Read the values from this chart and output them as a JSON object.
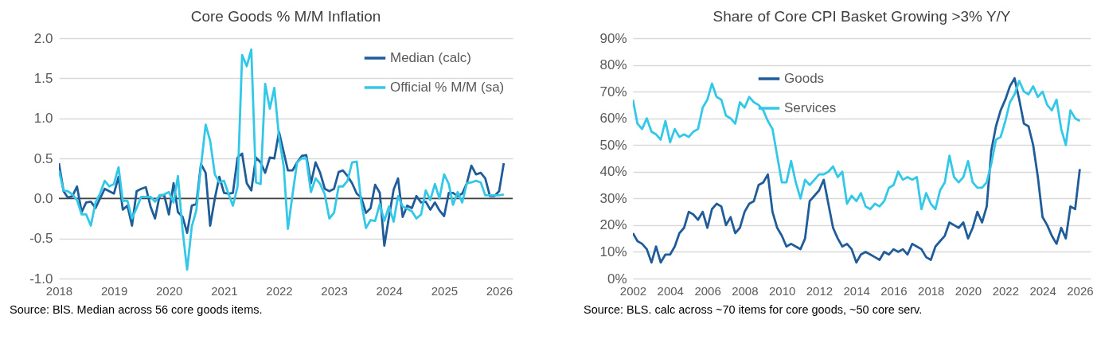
{
  "chart_data": [
    {
      "type": "line",
      "title": "Core Goods % M/M Inflation",
      "xlim": [
        "2018-01",
        "2026-04"
      ],
      "xticks": [
        "2018",
        "2019",
        "2020",
        "2021",
        "2022",
        "2023",
        "2024",
        "2025",
        "2026"
      ],
      "ylim": [
        -1,
        2
      ],
      "yticks": [
        {
          "value": -1,
          "label": "-1.0"
        },
        -0.5,
        {
          "value": 0,
          "label": "0.0"
        },
        0.5,
        {
          "value": 1,
          "label": "1.0"
        },
        1.5,
        {
          "value": 2,
          "label": "2.0"
        }
      ],
      "grid": "y",
      "legend": "top right",
      "ref_lines": [
        {
          "axis": "y",
          "value": 0,
          "color": "#404040"
        }
      ],
      "annotations": [
        "Source: BlS. Median across 56 core goods items."
      ],
      "x": [
        "2018-01",
        "2018-02",
        "2018-03",
        "2018-04",
        "2018-05",
        "2018-06",
        "2018-07",
        "2018-08",
        "2018-09",
        "2018-10",
        "2018-11",
        "2018-12",
        "2019-01",
        "2019-02",
        "2019-03",
        "2019-04",
        "2019-05",
        "2019-06",
        "2019-07",
        "2019-08",
        "2019-09",
        "2019-10",
        "2019-11",
        "2019-12",
        "2020-01",
        "2020-02",
        "2020-03",
        "2020-04",
        "2020-05",
        "2020-06",
        "2020-07",
        "2020-08",
        "2020-09",
        "2020-10",
        "2020-11",
        "2020-12",
        "2021-01",
        "2021-02",
        "2021-03",
        "2021-04",
        "2021-05",
        "2021-06",
        "2021-07",
        "2021-08",
        "2021-09",
        "2021-10",
        "2021-11",
        "2021-12",
        "2022-01",
        "2022-02",
        "2022-03",
        "2022-04",
        "2022-05",
        "2022-06",
        "2022-07",
        "2022-08",
        "2022-09",
        "2022-10",
        "2022-11",
        "2022-12",
        "2023-01",
        "2023-02",
        "2023-03",
        "2023-04",
        "2023-05",
        "2023-06",
        "2023-07",
        "2023-08",
        "2023-09",
        "2023-10",
        "2023-11",
        "2023-12",
        "2024-01",
        "2024-02",
        "2024-03",
        "2024-04",
        "2024-05",
        "2024-06",
        "2024-07",
        "2024-08",
        "2024-09",
        "2024-10",
        "2024-11",
        "2024-12",
        "2025-01",
        "2025-02",
        "2025-03",
        "2025-04",
        "2025-05",
        "2025-06",
        "2025-07",
        "2025-08",
        "2025-09",
        "2025-10",
        "2025-11",
        "2025-12",
        "2026-01",
        "2026-02"
      ],
      "series": [
        {
          "name": "Median (calc)",
          "color": "#1f5c99",
          "values": [
            0.44,
            0.09,
            0.01,
            0.03,
            0.15,
            -0.17,
            -0.05,
            -0.04,
            -0.12,
            0.0,
            0.12,
            0.09,
            0.06,
            0.27,
            -0.14,
            -0.09,
            -0.34,
            0.09,
            0.12,
            0.14,
            -0.1,
            -0.25,
            0.04,
            0.04,
            -0.2,
            0.19,
            -0.17,
            -0.23,
            -0.43,
            -0.09,
            -0.07,
            0.43,
            0.32,
            -0.34,
            0.0,
            0.27,
            0.07,
            0.06,
            0.07,
            0.51,
            0.56,
            0.19,
            0.1,
            0.51,
            0.45,
            0.32,
            0.51,
            0.5,
            0.83,
            0.58,
            0.35,
            0.35,
            0.45,
            0.53,
            0.54,
            0.19,
            0.45,
            0.32,
            0.12,
            0.09,
            0.12,
            0.33,
            0.35,
            0.28,
            0.19,
            0.06,
            0.01,
            -0.18,
            -0.12,
            0.17,
            0.07,
            -0.59,
            -0.23,
            0.11,
            0.25,
            -0.23,
            -0.09,
            -0.12,
            0.03,
            -0.05,
            -0.04,
            -0.14,
            -0.05,
            -0.15,
            -0.22,
            0.07,
            0.07,
            0.03,
            0.06,
            0.19,
            0.41,
            0.3,
            0.32,
            0.25,
            0.03,
            0.03,
            0.09,
            0.44
          ]
        },
        {
          "name": "Official % M/M (sa)",
          "color": "#33c7e8",
          "values": [
            0.35,
            0.1,
            0.09,
            0.05,
            -0.02,
            -0.2,
            -0.2,
            -0.34,
            -0.05,
            0.06,
            0.22,
            0.15,
            0.18,
            0.39,
            -0.03,
            -0.03,
            -0.25,
            -0.12,
            0.02,
            0.02,
            0.02,
            -0.04,
            0.04,
            0.05,
            0.08,
            -0.05,
            0.28,
            -0.4,
            -0.89,
            -0.35,
            -0.15,
            0.4,
            0.92,
            0.72,
            0.3,
            0.2,
            0.22,
            0.05,
            -0.09,
            0.15,
            1.79,
            1.65,
            1.86,
            0.2,
            0.18,
            1.43,
            1.12,
            1.38,
            0.77,
            0.4,
            -0.38,
            0.05,
            0.45,
            0.5,
            0.5,
            0.08,
            0.25,
            0.18,
            0.05,
            -0.25,
            -0.18,
            0.15,
            0.15,
            0.22,
            0.45,
            0.46,
            -0.05,
            -0.37,
            -0.27,
            -0.28,
            -0.07,
            -0.28,
            -0.1,
            -0.29,
            0.03,
            -0.1,
            -0.13,
            -0.16,
            -0.25,
            -0.2,
            0.1,
            -0.02,
            0.18,
            0.0,
            0.3,
            0.18,
            -0.08,
            0.08,
            -0.05,
            0.19,
            0.2,
            0.22,
            0.2,
            0.04,
            0.04,
            0.04,
            0.04,
            0.05
          ]
        }
      ]
    },
    {
      "type": "line",
      "title": "Share of Core CPI Basket Growing >3% Y/Y",
      "xlim": [
        "2002-01",
        "2026-08"
      ],
      "xticks": [
        "2002",
        "2004",
        "2006",
        "2008",
        "2010",
        "2012",
        "2014",
        "2016",
        "2018",
        "2020",
        "2022",
        "2024",
        "2026"
      ],
      "ylim": [
        0,
        90
      ],
      "yticks": [
        {
          "value": 0,
          "label": "0%"
        },
        {
          "value": 10,
          "label": "10%"
        },
        {
          "value": 20,
          "label": "20%"
        },
        {
          "value": 30,
          "label": "30%"
        },
        {
          "value": 40,
          "label": "40%"
        },
        {
          "value": 50,
          "label": "50%"
        },
        {
          "value": 60,
          "label": "60%"
        },
        {
          "value": 70,
          "label": "70%"
        },
        {
          "value": 80,
          "label": "80%"
        },
        {
          "value": 90,
          "label": "90%"
        }
      ],
      "grid": "y",
      "legend": "top left",
      "annotations": [
        "Source: BLS. calc across ~70 items for core goods, ~50 core serv."
      ],
      "x": [
        "2002-01",
        "2002-04",
        "2002-07",
        "2002-10",
        "2003-01",
        "2003-04",
        "2003-07",
        "2003-10",
        "2004-01",
        "2004-04",
        "2004-07",
        "2004-10",
        "2005-01",
        "2005-04",
        "2005-07",
        "2005-10",
        "2006-01",
        "2006-04",
        "2006-07",
        "2006-10",
        "2007-01",
        "2007-04",
        "2007-07",
        "2007-10",
        "2008-01",
        "2008-04",
        "2008-07",
        "2008-10",
        "2009-01",
        "2009-04",
        "2009-07",
        "2009-10",
        "2010-01",
        "2010-04",
        "2010-07",
        "2010-10",
        "2011-01",
        "2011-04",
        "2011-07",
        "2011-10",
        "2012-01",
        "2012-04",
        "2012-07",
        "2012-10",
        "2013-01",
        "2013-04",
        "2013-07",
        "2013-10",
        "2014-01",
        "2014-04",
        "2014-07",
        "2014-10",
        "2015-01",
        "2015-04",
        "2015-07",
        "2015-10",
        "2016-01",
        "2016-04",
        "2016-07",
        "2016-10",
        "2017-01",
        "2017-04",
        "2017-07",
        "2017-10",
        "2018-01",
        "2018-04",
        "2018-07",
        "2018-10",
        "2019-01",
        "2019-04",
        "2019-07",
        "2019-10",
        "2020-01",
        "2020-04",
        "2020-07",
        "2020-10",
        "2021-01",
        "2021-04",
        "2021-07",
        "2021-10",
        "2022-01",
        "2022-04",
        "2022-07",
        "2022-10",
        "2023-01",
        "2023-04",
        "2023-07",
        "2023-10",
        "2024-01",
        "2024-04",
        "2024-07",
        "2024-10",
        "2025-01",
        "2025-04",
        "2025-07",
        "2025-10",
        "2026-01"
      ],
      "series": [
        {
          "name": "Goods",
          "color": "#1f5c99",
          "values": [
            17,
            14,
            13,
            11,
            6,
            12,
            6,
            9,
            9,
            12,
            17,
            19,
            25,
            24,
            22,
            25,
            19,
            26,
            28,
            27,
            20,
            23,
            17,
            19,
            25,
            28,
            29,
            35,
            36,
            39,
            25,
            19,
            16,
            12,
            13,
            12,
            11,
            15,
            29,
            31,
            33,
            37,
            28,
            19,
            15,
            12,
            13,
            11,
            6,
            9,
            10,
            9,
            8,
            7,
            10,
            9,
            11,
            10,
            11,
            9,
            13,
            12,
            11,
            8,
            7,
            12,
            14,
            16,
            21,
            20,
            19,
            21,
            15,
            19,
            25,
            21,
            27,
            48,
            57,
            63,
            67,
            72,
            75,
            67,
            58,
            57,
            50,
            38,
            23,
            20,
            16,
            13,
            19,
            15,
            27,
            26,
            41
          ]
        },
        {
          "name": "Services",
          "color": "#33c7e8",
          "values": [
            67,
            58,
            56,
            60,
            55,
            54,
            52,
            59,
            51,
            56,
            53,
            54,
            53,
            55,
            56,
            64,
            67,
            73,
            68,
            67,
            61,
            60,
            58,
            66,
            64,
            68,
            66,
            65,
            63,
            59,
            56,
            46,
            36,
            36,
            44,
            36,
            30,
            37,
            35,
            37,
            39,
            39,
            40,
            42,
            38,
            40,
            28,
            31,
            29,
            32,
            27,
            26,
            28,
            27,
            29,
            34,
            35,
            40,
            37,
            38,
            37,
            38,
            26,
            32,
            28,
            26,
            33,
            36,
            46,
            38,
            36,
            38,
            44,
            36,
            34,
            34,
            36,
            43,
            52,
            53,
            59,
            66,
            69,
            74,
            70,
            69,
            72,
            68,
            70,
            65,
            63,
            67,
            56,
            50,
            63,
            60,
            59
          ]
        }
      ]
    }
  ]
}
